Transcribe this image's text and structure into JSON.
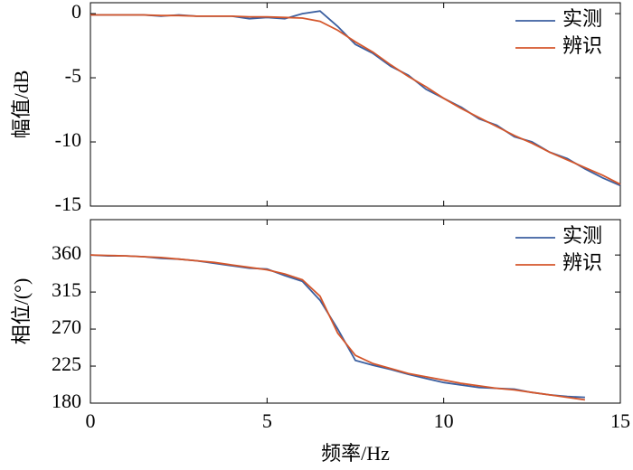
{
  "chart_data": [
    {
      "type": "line",
      "ylabel": "幅值/dB",
      "x": [
        0,
        0.5,
        1,
        1.5,
        2,
        2.5,
        3,
        3.5,
        4,
        4.5,
        5,
        5.5,
        6,
        6.5,
        7,
        7.5,
        8,
        8.5,
        9,
        9.5,
        10,
        10.5,
        11,
        11.5,
        12,
        12.5,
        13,
        13.5,
        14,
        14.5,
        15
      ],
      "series": [
        {
          "name": "实测",
          "color": "#3b5fa0",
          "values": [
            -0.1,
            -0.1,
            -0.1,
            -0.1,
            -0.2,
            -0.1,
            -0.2,
            -0.2,
            -0.2,
            -0.4,
            -0.3,
            -0.4,
            0.0,
            0.2,
            -1.0,
            -2.4,
            -3.1,
            -4.1,
            -4.8,
            -5.9,
            -6.6,
            -7.3,
            -8.2,
            -8.7,
            -9.6,
            -10.0,
            -10.8,
            -11.3,
            -12.1,
            -12.8,
            -13.4
          ]
        },
        {
          "name": "辨识",
          "color": "#d4562b",
          "values": [
            -0.1,
            -0.1,
            -0.1,
            -0.1,
            -0.15,
            -0.15,
            -0.2,
            -0.2,
            -0.2,
            -0.25,
            -0.25,
            -0.3,
            -0.35,
            -0.6,
            -1.3,
            -2.2,
            -3.0,
            -4.0,
            -4.9,
            -5.7,
            -6.6,
            -7.4,
            -8.1,
            -8.8,
            -9.5,
            -10.1,
            -10.8,
            -11.4,
            -12.0,
            -12.6,
            -13.3
          ]
        }
      ],
      "xlim": [
        0,
        15
      ],
      "xticks": [
        0,
        5,
        10,
        15
      ],
      "xtick_labels": false,
      "ylim": [
        -15,
        0.85
      ],
      "yticks": [
        0,
        -5,
        -10,
        -15
      ],
      "legend": "upper right"
    },
    {
      "type": "line",
      "ylabel": "相位/(°)",
      "xlabel": "频率/Hz",
      "x": [
        0,
        0.5,
        1,
        1.5,
        2,
        2.5,
        3,
        3.5,
        4,
        4.5,
        5,
        5.5,
        6,
        6.5,
        7,
        7.5,
        8,
        8.5,
        9,
        9.5,
        10,
        10.5,
        11,
        11.5,
        12,
        12.5,
        13,
        13.5,
        14,
        14.5,
        15
      ],
      "series": [
        {
          "name": "实测",
          "color": "#3b5fa0",
          "values": [
            360,
            359,
            359,
            358,
            356,
            355,
            353,
            350,
            347,
            344,
            343,
            335,
            328,
            305,
            270,
            232,
            226,
            221,
            215,
            210,
            205,
            202,
            199,
            198,
            197,
            193,
            190,
            188,
            187,
            null,
            null
          ]
        },
        {
          "name": "辨识",
          "color": "#d4562b",
          "values": [
            360,
            359.5,
            359,
            358,
            357,
            355,
            353,
            351,
            348,
            345,
            342,
            337,
            330,
            310,
            265,
            238,
            228,
            222,
            216,
            212,
            208,
            204,
            201,
            198,
            196,
            193,
            190,
            187,
            184,
            null,
            null
          ]
        }
      ],
      "xlim": [
        0,
        15
      ],
      "xticks": [
        0,
        5,
        10,
        15
      ],
      "xtick_labels": true,
      "ylim": [
        180,
        403
      ],
      "yticks": [
        180,
        225,
        270,
        315,
        360
      ],
      "legend": "upper right"
    }
  ]
}
